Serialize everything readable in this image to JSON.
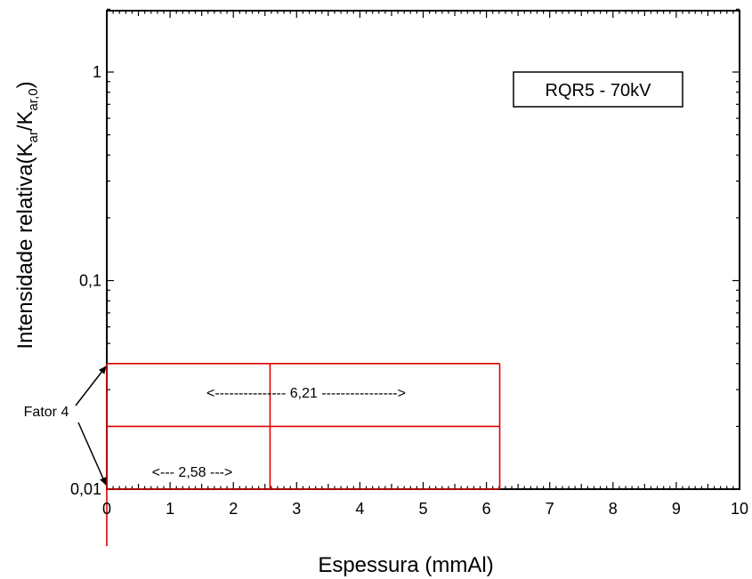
{
  "chart_data": {
    "type": "line",
    "title": "",
    "xlabel": "Espessura (mmAl)",
    "ylabel": "Intensidade relativa(K<sub>ar</sub>/K<sub>ar,0</sub>)",
    "ylabel_parts": {
      "main": "Intensidade relativa(K",
      "sub1": "ar",
      "mid": "/K",
      "sub2": "ar,0",
      "end": ")"
    },
    "xlim": [
      0,
      10
    ],
    "ylim": [
      0.01,
      2
    ],
    "yscale": "log",
    "x_ticks": [
      "0",
      "1",
      "2",
      "3",
      "4",
      "5",
      "6",
      "7",
      "8",
      "9",
      "10"
    ],
    "x_tick_values": [
      0,
      1,
      2,
      3,
      4,
      5,
      6,
      7,
      8,
      9,
      10
    ],
    "y_ticks": [
      "0,01",
      "0,1",
      "1"
    ],
    "y_tick_values": [
      0.01,
      0.1,
      1
    ],
    "grid": false,
    "legend_box": "RQR5 - 70kV",
    "series": [],
    "reference_lines": {
      "horizontal": [
        {
          "y": 0.04,
          "x_from": 0,
          "x_to": 6.21
        },
        {
          "y": 0.02,
          "x_from": 0,
          "x_to": 6.21
        },
        {
          "y": 0.01,
          "x_from": 0,
          "x_to": 6.21
        }
      ],
      "vertical": [
        {
          "x": 0,
          "y_from": 0.01,
          "y_to": 0.04
        },
        {
          "x": 2.58,
          "y_from": 0.01,
          "y_to": 0.04
        },
        {
          "x": 6.21,
          "y_from": 0.01,
          "y_to": 0.04
        }
      ],
      "color": "#e00000"
    },
    "annotations": {
      "factor_label": "Fator 4",
      "hvl1": {
        "text": "<--- 2,58 --->",
        "value": 2.58
      },
      "hvl2": {
        "text": "<--------------- 6,21 ---------------->",
        "value": 6.21
      }
    }
  }
}
